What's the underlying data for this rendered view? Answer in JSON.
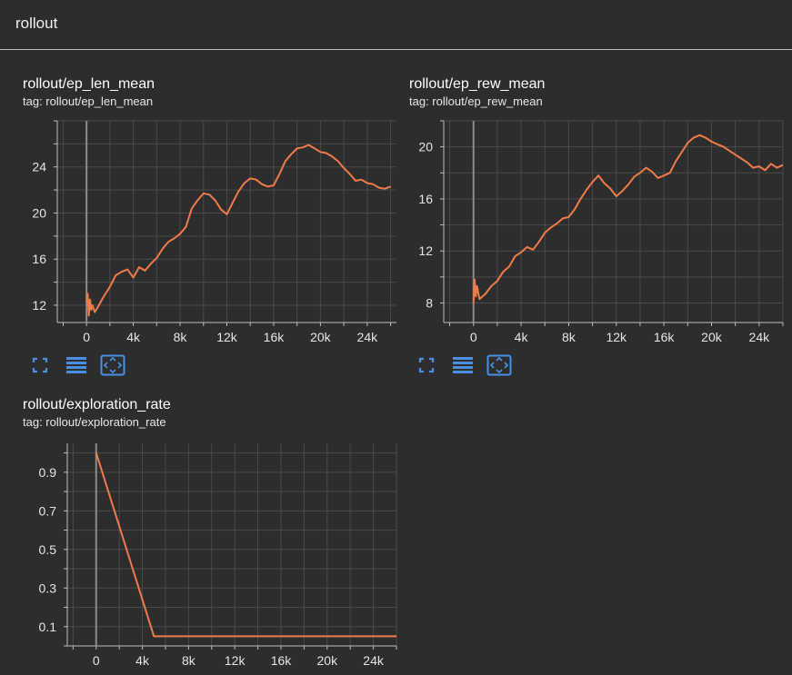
{
  "section": {
    "title": "rollout"
  },
  "colors": {
    "line": "#f07b4a",
    "grid": "#4a4a4a",
    "axis": "#bdbdbd",
    "zero_line": "#8c8c8c",
    "icon": "#4a90e2"
  },
  "icons": [
    "fit-domain-icon",
    "toggle-log-icon",
    "expand-chart-icon"
  ],
  "chart_data": [
    {
      "type": "line",
      "title": "rollout/ep_len_mean",
      "tag_label": "tag: rollout/ep_len_mean",
      "xlim": [
        -2500,
        26500
      ],
      "ylim": [
        10.5,
        28
      ],
      "x_ticks": [
        0,
        4000,
        8000,
        12000,
        16000,
        20000,
        24000
      ],
      "x_tick_labels": [
        "0",
        "4k",
        "8k",
        "12k",
        "16k",
        "20k",
        "24k"
      ],
      "y_ticks": [
        12,
        16,
        20,
        24
      ],
      "y_tick_labels": [
        "12",
        "16",
        "20",
        "24"
      ],
      "grid": true,
      "series": [
        {
          "x": [
            0,
            100,
            200,
            300,
            400,
            500,
            700,
            1000,
            1500,
            2000,
            2500,
            3000,
            3500,
            4000,
            4500,
            5000,
            5500,
            6000,
            6500,
            7000,
            7500,
            8000,
            8500,
            9000,
            9500,
            10000,
            10500,
            11000,
            11500,
            12000,
            12500,
            13000,
            13500,
            14000,
            14500,
            15000,
            15500,
            16000,
            16500,
            17000,
            17500,
            18000,
            18500,
            19000,
            19500,
            20000,
            20500,
            21000,
            21500,
            22000,
            22500,
            23000,
            23500,
            24000,
            24500,
            25000,
            25500,
            26000
          ],
          "y": [
            12.3,
            13.0,
            11.1,
            12.5,
            11.6,
            12.0,
            11.4,
            11.9,
            12.8,
            13.6,
            14.6,
            14.9,
            15.1,
            14.4,
            15.3,
            15.0,
            15.6,
            16.1,
            16.9,
            17.5,
            17.8,
            18.2,
            18.8,
            20.4,
            21.1,
            21.7,
            21.6,
            21.1,
            20.3,
            19.9,
            20.9,
            21.9,
            22.6,
            23.0,
            22.9,
            22.5,
            22.3,
            22.4,
            23.4,
            24.5,
            25.1,
            25.6,
            25.7,
            25.9,
            25.6,
            25.3,
            25.2,
            24.9,
            24.5,
            23.9,
            23.4,
            22.8,
            22.9,
            22.6,
            22.5,
            22.2,
            22.1,
            22.3
          ]
        }
      ]
    },
    {
      "type": "line",
      "title": "rollout/ep_rew_mean",
      "tag_label": "tag: rollout/ep_rew_mean",
      "xlim": [
        -2500,
        26000
      ],
      "ylim": [
        6.5,
        22
      ],
      "x_ticks": [
        0,
        4000,
        8000,
        12000,
        16000,
        20000,
        24000
      ],
      "x_tick_labels": [
        "0",
        "4k",
        "8k",
        "12k",
        "16k",
        "20k",
        "24k"
      ],
      "y_ticks": [
        8,
        12,
        16,
        20
      ],
      "y_tick_labels": [
        "8",
        "12",
        "16",
        "20"
      ],
      "grid": true,
      "series": [
        {
          "x": [
            0,
            100,
            200,
            300,
            500,
            1000,
            1500,
            2000,
            2500,
            3000,
            3500,
            4000,
            4500,
            5000,
            5500,
            6000,
            6500,
            7000,
            7500,
            8000,
            8500,
            9000,
            9500,
            10000,
            10500,
            11000,
            11500,
            12000,
            12500,
            13000,
            13500,
            14000,
            14500,
            15000,
            15500,
            16000,
            16500,
            17000,
            17500,
            18000,
            18500,
            19000,
            19500,
            20000,
            20500,
            21000,
            21500,
            22000,
            22500,
            23000,
            23500,
            24000,
            24500,
            25000,
            25500,
            26000
          ],
          "y": [
            8.0,
            9.8,
            8.5,
            9.3,
            8.3,
            8.7,
            9.3,
            9.7,
            10.4,
            10.8,
            11.6,
            11.9,
            12.3,
            12.1,
            12.7,
            13.4,
            13.8,
            14.1,
            14.5,
            14.6,
            15.2,
            16.0,
            16.7,
            17.3,
            17.8,
            17.2,
            16.8,
            16.2,
            16.6,
            17.1,
            17.7,
            18.0,
            18.4,
            18.1,
            17.6,
            17.8,
            18.0,
            18.9,
            19.6,
            20.3,
            20.7,
            20.9,
            20.7,
            20.4,
            20.2,
            20.0,
            19.7,
            19.4,
            19.1,
            18.8,
            18.4,
            18.5,
            18.2,
            18.7,
            18.4,
            18.6
          ]
        }
      ]
    },
    {
      "type": "line",
      "title": "rollout/exploration_rate",
      "tag_label": "tag: rollout/exploration_rate",
      "xlim": [
        -2500,
        26000
      ],
      "ylim": [
        0,
        1.05
      ],
      "x_ticks": [
        0,
        4000,
        8000,
        12000,
        16000,
        20000,
        24000
      ],
      "x_tick_labels": [
        "0",
        "4k",
        "8k",
        "12k",
        "16k",
        "20k",
        "24k"
      ],
      "y_ticks": [
        0.1,
        0.3,
        0.5,
        0.7,
        0.9
      ],
      "y_tick_labels": [
        "0.1",
        "0.3",
        "0.5",
        "0.7",
        "0.9"
      ],
      "grid": true,
      "series": [
        {
          "x": [
            0,
            5000,
            26000
          ],
          "y": [
            1.0,
            0.05,
            0.05
          ]
        }
      ]
    }
  ]
}
